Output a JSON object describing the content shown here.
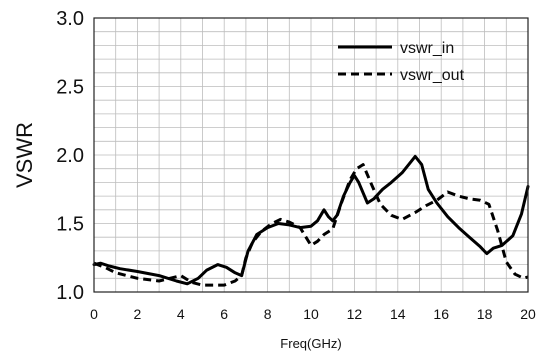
{
  "chart_data": {
    "type": "line",
    "title": "",
    "xlabel": "Freq(GHz)",
    "ylabel": "VSWR",
    "xlim": [
      0,
      20
    ],
    "ylim": [
      1.0,
      3.0
    ],
    "x_ticks": [
      "0",
      "2",
      "4",
      "6",
      "8",
      "10",
      "12",
      "14",
      "16",
      "18",
      "20"
    ],
    "y_ticks": [
      "1.0",
      "1.5",
      "2.0",
      "2.5",
      "3.0"
    ],
    "grid": true,
    "legend_position": "top-right",
    "series": [
      {
        "name": "vswr_in",
        "style": "solid",
        "color": "#000000",
        "x": [
          0.0,
          0.3,
          0.7,
          1.2,
          2.0,
          3.0,
          3.8,
          4.3,
          4.8,
          5.2,
          5.7,
          6.1,
          6.5,
          6.8,
          7.1,
          7.5,
          8.0,
          8.5,
          9.0,
          9.5,
          10.0,
          10.3,
          10.6,
          10.8,
          11.0,
          11.2,
          11.5,
          11.8,
          12.0,
          12.2,
          12.6,
          12.9,
          13.3,
          13.7,
          14.2,
          14.8,
          15.1,
          15.4,
          15.8,
          16.3,
          16.8,
          17.3,
          17.8,
          18.1,
          18.4,
          18.8,
          19.3,
          19.7,
          20.0
        ],
        "y": [
          1.2,
          1.21,
          1.19,
          1.17,
          1.15,
          1.12,
          1.08,
          1.06,
          1.1,
          1.16,
          1.2,
          1.18,
          1.14,
          1.12,
          1.3,
          1.42,
          1.47,
          1.5,
          1.49,
          1.47,
          1.48,
          1.52,
          1.6,
          1.55,
          1.52,
          1.56,
          1.7,
          1.8,
          1.85,
          1.8,
          1.65,
          1.68,
          1.75,
          1.8,
          1.87,
          1.99,
          1.93,
          1.75,
          1.65,
          1.55,
          1.47,
          1.4,
          1.33,
          1.28,
          1.32,
          1.34,
          1.41,
          1.57,
          1.77
        ]
      },
      {
        "name": "vswr_out",
        "style": "dashed",
        "color": "#000000",
        "x": [
          0.0,
          0.5,
          1.0,
          2.0,
          3.0,
          3.5,
          4.0,
          4.5,
          5.0,
          5.5,
          6.0,
          6.5,
          6.8,
          7.0,
          7.3,
          7.7,
          8.2,
          8.6,
          9.0,
          9.5,
          10.0,
          10.3,
          10.6,
          11.0,
          11.4,
          11.8,
          12.1,
          12.4,
          12.8,
          13.2,
          13.7,
          14.2,
          14.8,
          15.3,
          15.8,
          16.3,
          16.8,
          17.3,
          17.8,
          18.2,
          18.6,
          19.0,
          19.4,
          19.8,
          20.0
        ],
        "y": [
          1.21,
          1.18,
          1.14,
          1.1,
          1.08,
          1.1,
          1.12,
          1.07,
          1.05,
          1.05,
          1.05,
          1.08,
          1.12,
          1.25,
          1.36,
          1.44,
          1.5,
          1.53,
          1.51,
          1.47,
          1.34,
          1.37,
          1.42,
          1.46,
          1.65,
          1.82,
          1.9,
          1.93,
          1.78,
          1.64,
          1.56,
          1.53,
          1.58,
          1.63,
          1.67,
          1.73,
          1.7,
          1.68,
          1.67,
          1.64,
          1.45,
          1.22,
          1.13,
          1.1,
          1.11
        ]
      }
    ]
  }
}
